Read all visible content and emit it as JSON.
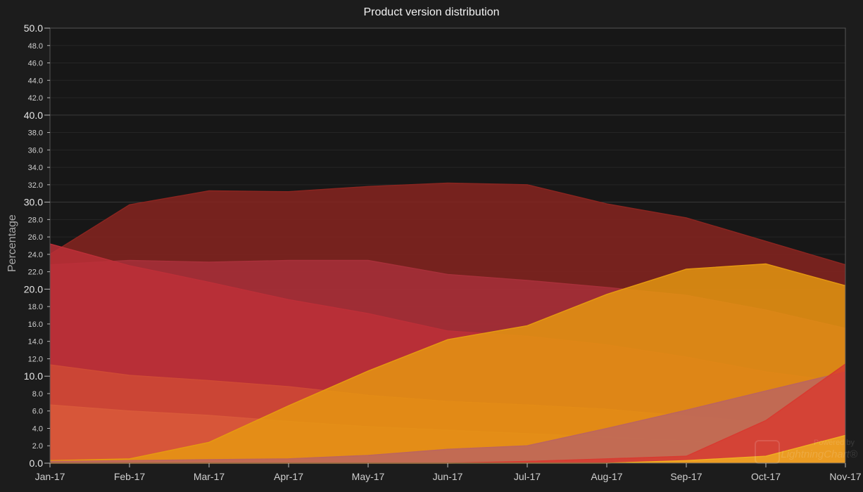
{
  "chart_data": {
    "type": "area",
    "title": "Product version distribution",
    "ylabel": "Percentage",
    "xlabel": "",
    "ylim": [
      0,
      50
    ],
    "grid": true,
    "categories": [
      "Jan-17",
      "Feb-17",
      "Mar-17",
      "Apr-17",
      "May-17",
      "Jun-17",
      "Jul-17",
      "Aug-17",
      "Sep-17",
      "Oct-17",
      "Nov-17"
    ],
    "y_major_ticks": [
      "0.0",
      "10.0",
      "20.0",
      "30.0",
      "40.0",
      "50.0"
    ],
    "y_minor_ticks": [
      "2.0",
      "4.0",
      "6.0",
      "8.0",
      "12.0",
      "14.0",
      "16.0",
      "18.0",
      "22.0",
      "24.0",
      "26.0",
      "28.0",
      "32.0",
      "34.0",
      "36.0",
      "38.0",
      "42.0",
      "44.0",
      "46.0",
      "48.0"
    ],
    "series": [
      {
        "color": "#8b2520",
        "values": [
          24.0,
          29.7,
          31.3,
          31.2,
          31.8,
          32.2,
          32.0,
          29.8,
          28.2,
          25.5,
          22.8
        ]
      },
      {
        "color": "#a8303a",
        "values": [
          22.8,
          23.3,
          23.1,
          23.3,
          23.3,
          21.7,
          21.0,
          20.2,
          19.3,
          17.6,
          15.5
        ]
      },
      {
        "color": "#bd2f38",
        "values": [
          25.2,
          22.7,
          20.8,
          18.8,
          17.2,
          15.2,
          14.6,
          13.6,
          12.2,
          10.5,
          9.3
        ]
      },
      {
        "color": "#cf4a35",
        "values": [
          11.3,
          10.1,
          9.5,
          8.8,
          7.8,
          7.1,
          6.7,
          6.2,
          5.4,
          4.7,
          3.6
        ]
      },
      {
        "color": "#d95a3a",
        "values": [
          6.7,
          6.0,
          5.5,
          4.8,
          4.2,
          3.8,
          3.4,
          3.0,
          2.6,
          2.0,
          1.6
        ]
      },
      {
        "color": "#e69a10",
        "values": [
          0.3,
          0.5,
          2.4,
          6.6,
          10.6,
          14.2,
          15.8,
          19.4,
          22.3,
          22.9,
          20.4
        ]
      },
      {
        "color": "#bb6460",
        "values": [
          0.2,
          0.3,
          0.4,
          0.5,
          0.9,
          1.6,
          2.0,
          4.0,
          6.1,
          8.3,
          10.5
        ]
      },
      {
        "color": "#d83a30",
        "values": [
          0.0,
          0.0,
          0.0,
          0.0,
          0.0,
          0.0,
          0.2,
          0.5,
          0.8,
          4.9,
          11.4
        ]
      },
      {
        "color": "#f0b020",
        "values": [
          0.0,
          0.0,
          0.0,
          0.0,
          0.0,
          0.0,
          0.0,
          0.0,
          0.3,
          0.8,
          3.2
        ]
      }
    ]
  },
  "watermark": {
    "top": "Powered by",
    "brand": "LightningChart®"
  }
}
